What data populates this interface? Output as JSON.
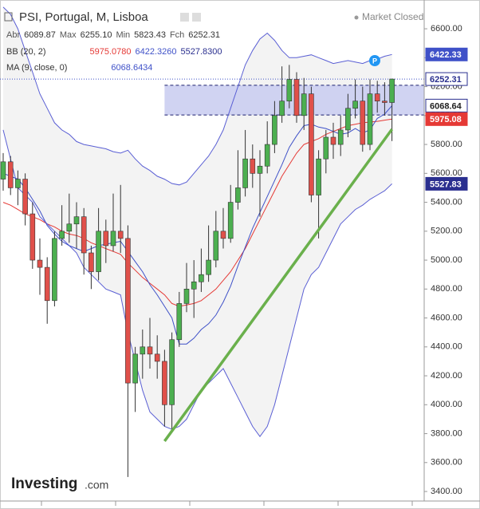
{
  "chart_data": {
    "type": "candlestick",
    "title": "PSI, Portugal, M, Lisboa",
    "status": "Market Closed",
    "ohlc_legend": [
      {
        "label": "Abr",
        "value": "6089.87"
      },
      {
        "label": "Max",
        "value": "6255.10"
      },
      {
        "label": "Min",
        "value": "5823.43"
      },
      {
        "label": "Fch",
        "value": "6252.31"
      }
    ],
    "indicators": [
      {
        "name": "BB (20, 2)",
        "values": [
          {
            "text": "5975.0780",
            "color": "#e53935"
          },
          {
            "text": "6422.3260",
            "color": "#3f51c8"
          },
          {
            "text": "5527.8300",
            "color": "#2a2f8f"
          }
        ]
      },
      {
        "name": "MA (9, close, 0)",
        "values": [
          {
            "text": "6068.6434",
            "color": "#3f51c8"
          }
        ]
      }
    ],
    "open": [
      5560,
      5680,
      5500,
      5560,
      5320,
      5000,
      4950,
      4720,
      5150,
      5200,
      5250,
      5300,
      5050,
      4920,
      5200,
      5100,
      5200,
      5150,
      4150,
      4350,
      4400,
      4350,
      4300,
      4000,
      4450,
      4700,
      4800,
      4850,
      4900,
      5000,
      5200,
      5150,
      5400,
      5500,
      5700,
      5600,
      5650,
      5800,
      6000,
      6100,
      6250,
      6000,
      6150,
      5450,
      5700,
      5850,
      5800,
      5900,
      6050,
      6100,
      5800,
      6150,
      6100,
      6089.87
    ],
    "high": [
      5740,
      5720,
      5620,
      5600,
      5400,
      5150,
      5020,
      5200,
      5380,
      5460,
      5400,
      5360,
      5100,
      5360,
      5280,
      5460,
      5520,
      5240,
      4400,
      4520,
      4600,
      4480,
      4380,
      4500,
      4780,
      4980,
      5000,
      5080,
      5240,
      5340,
      5360,
      5520,
      5760,
      5900,
      5800,
      5760,
      5960,
      6100,
      6340,
      6350,
      6300,
      6260,
      6200,
      5760,
      5900,
      5950,
      6000,
      6150,
      6250,
      6200,
      6250,
      6240,
      6230,
      6255.1
    ],
    "low": [
      5480,
      5450,
      5380,
      5240,
      4940,
      4760,
      4560,
      4680,
      5100,
      5120,
      5080,
      4900,
      4800,
      4860,
      4980,
      5060,
      5050,
      3500,
      3950,
      4180,
      4250,
      4180,
      3850,
      3820,
      4400,
      4640,
      4600,
      4780,
      4850,
      4950,
      5080,
      5120,
      5350,
      5440,
      5500,
      5300,
      5600,
      5740,
      5950,
      6050,
      5950,
      5900,
      5400,
      5150,
      5600,
      5700,
      5720,
      5850,
      5980,
      5750,
      5760,
      6020,
      6000,
      5823.43
    ],
    "close": [
      5680,
      5500,
      5560,
      5320,
      5000,
      4950,
      4720,
      5150,
      5200,
      5250,
      5300,
      5050,
      4920,
      5200,
      5100,
      5200,
      5150,
      4150,
      4350,
      4400,
      4350,
      4300,
      4000,
      4450,
      4700,
      4800,
      4850,
      4900,
      5000,
      5200,
      5150,
      5400,
      5500,
      5700,
      5600,
      5650,
      5800,
      6000,
      6100,
      6250,
      6000,
      6150,
      5450,
      5700,
      5850,
      5800,
      5900,
      6050,
      6100,
      5800,
      6150,
      6100,
      6089.87,
      6252.31
    ],
    "up_color": "#4caf50",
    "down_color": "#e0504a",
    "bands": [
      {
        "color": "#5a5fd4",
        "values": [
          6750,
          6700,
          6600,
          6450,
          6300,
          6150,
          6050,
          5950,
          5900,
          5870,
          5820,
          5800,
          5790,
          5780,
          5770,
          5750,
          5740,
          5760,
          5700,
          5650,
          5620,
          5580,
          5560,
          5530,
          5520,
          5540,
          5600,
          5660,
          5720,
          5800,
          5900,
          6050,
          6200,
          6350,
          6450,
          6530,
          6570,
          6520,
          6450,
          6400,
          6400,
          6410,
          6420,
          6400,
          6380,
          6360,
          6370,
          6380,
          6370,
          6360,
          6380,
          6390,
          6410,
          6422.326
        ]
      },
      {
        "color": "#e53935",
        "values": [
          5400,
          5380,
          5350,
          5320,
          5300,
          5280,
          5250,
          5230,
          5200,
          5180,
          5170,
          5150,
          5120,
          5100,
          5080,
          5060,
          5040,
          4980,
          4930,
          4880,
          4840,
          4800,
          4760,
          4700,
          4680,
          4690,
          4700,
          4720,
          4760,
          4800,
          4860,
          4920,
          5000,
          5080,
          5180,
          5280,
          5380,
          5480,
          5580,
          5660,
          5740,
          5800,
          5820,
          5840,
          5870,
          5890,
          5910,
          5930,
          5940,
          5950,
          5955,
          5960,
          5968,
          5975.078
        ]
      },
      {
        "color": "#5a5fd4",
        "values": [
          5900,
          5700,
          5500,
          5450,
          5400,
          5300,
          5250,
          5200,
          5150,
          5100,
          5050,
          4950,
          4900,
          4850,
          4800,
          4780,
          4760,
          4500,
          4300,
          4100,
          3950,
          3900,
          3850,
          3830,
          3850,
          3900,
          4000,
          4100,
          4150,
          4200,
          4250,
          4150,
          4050,
          3950,
          3850,
          3780,
          3850,
          4000,
          4200,
          4400,
          4600,
          4800,
          4900,
          4950,
          5050,
          5150,
          5250,
          5300,
          5350,
          5380,
          5420,
          5450,
          5480,
          5527.83
        ]
      },
      {
        "color": "#3f51c8",
        "values": [
          5600,
          5580,
          5560,
          5500,
          5420,
          5340,
          5240,
          5180,
          5130,
          5100,
          5080,
          5060,
          5080,
          5100,
          5110,
          5120,
          5130,
          5060,
          4990,
          4920,
          4830,
          4760,
          4680,
          4600,
          4420,
          4420,
          4460,
          4520,
          4560,
          4620,
          4710,
          4820,
          4960,
          5090,
          5220,
          5330,
          5440,
          5550,
          5660,
          5780,
          5860,
          5930,
          5940,
          5920,
          5910,
          5890,
          5870,
          5880,
          5910,
          5880,
          5900,
          5980,
          6010,
          6068.64
        ]
      }
    ],
    "band_fill": "#f3f3f3",
    "zone": {
      "ylim": [
        6004,
        6209
      ],
      "x_start": 22,
      "color": "#c8cbf0"
    },
    "trendline": {
      "x": [
        22,
        53
      ],
      "y": [
        3748,
        5905
      ],
      "color": "#6ab04c"
    },
    "last_price": 6252.31,
    "price_labels": [
      {
        "value": 6422.33,
        "bg": "#3f51c8",
        "fg": "#ffffff"
      },
      {
        "value": 6252.31,
        "bg": "#ffffff",
        "fg": "#2a2f8f"
      },
      {
        "value": 6068.64,
        "bg": "#ffffff",
        "fg": "#222222"
      },
      {
        "value": 5975.08,
        "bg": "#e53935",
        "fg": "#ffffff"
      },
      {
        "value": 5527.83,
        "bg": "#2a2f8f",
        "fg": "#ffffff"
      }
    ],
    "ylim": [
      3334,
      6799
    ],
    "yticks": [
      {
        "value": 3400,
        "label": "3400.00"
      },
      {
        "value": 3600,
        "label": "3600.00"
      },
      {
        "value": 3800,
        "label": "3800.00"
      },
      {
        "value": 4000,
        "label": "4000.00"
      },
      {
        "value": 4200,
        "label": "4200.00"
      },
      {
        "value": 4400,
        "label": "4400.00"
      },
      {
        "value": 4600,
        "label": "4600.00"
      },
      {
        "value": 4800,
        "label": "4800.00"
      },
      {
        "value": 5000,
        "label": "5000.00"
      },
      {
        "value": 5200,
        "label": "5200.00"
      },
      {
        "value": 5400,
        "label": "5400.00"
      },
      {
        "value": 5600,
        "label": "5600.00"
      },
      {
        "value": 5800,
        "label": "5800.00"
      },
      {
        "value": 6000,
        "label": "6000.00"
      },
      {
        "value": 6200,
        "label": "6200.00"
      },
      {
        "value": 6400,
        "label": "6400.00"
      },
      {
        "value": 6600,
        "label": "6600.00"
      }
    ],
    "logo": [
      "Investing",
      ".com"
    ]
  }
}
